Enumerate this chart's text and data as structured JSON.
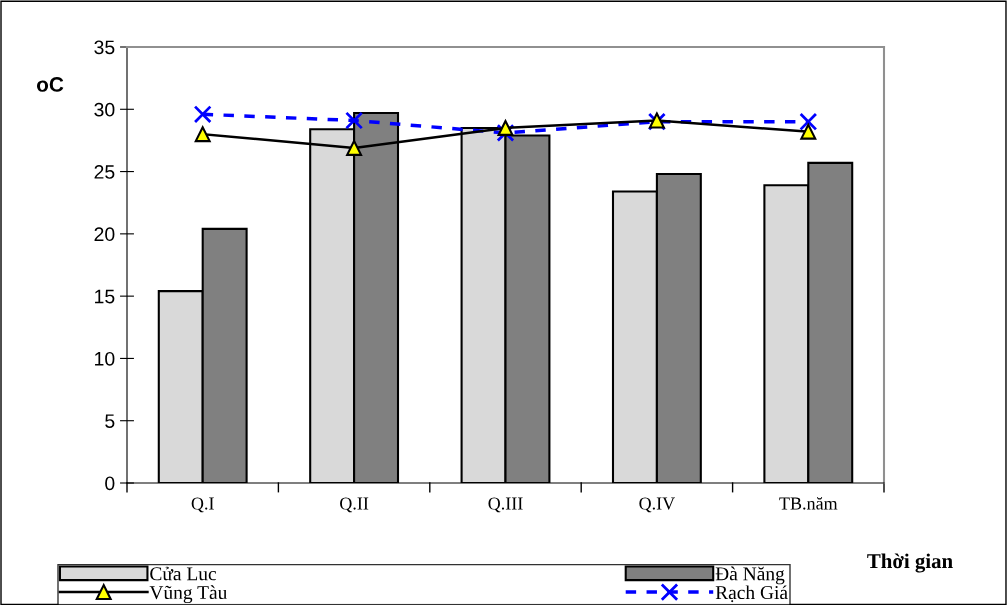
{
  "chart_data": {
    "type": "bar",
    "xlabel": "Thời gian",
    "ylabel": "oC",
    "categories": [
      "Q.I",
      "Q.II",
      "Q.III",
      "Q.IV",
      "TB.năm"
    ],
    "series": [
      {
        "name": "Cửa Luc",
        "color": "#d9d9d9",
        "values": [
          15.4,
          28.4,
          28.5,
          23.4,
          23.9
        ]
      },
      {
        "name": "Đà Năng",
        "color": "#808080",
        "values": [
          20.4,
          29.7,
          27.9,
          24.8,
          25.7
        ]
      },
      {
        "name": "Vũng Tàu",
        "type": "line",
        "color": "#000000",
        "marker": "triangle",
        "line_style": "solid",
        "values": [
          28.0,
          26.9,
          28.5,
          29.1,
          28.2
        ]
      },
      {
        "name": "Rạch Giá",
        "type": "line",
        "color": "#0000ff",
        "marker": "cross",
        "line_style": "dashed",
        "values": [
          29.6,
          29.1,
          28.1,
          29.0,
          29.0
        ]
      }
    ],
    "ylim": [
      0,
      35
    ],
    "yticks": [
      0,
      5,
      10,
      15,
      20,
      25,
      30,
      35
    ],
    "grid": false,
    "legend": "bottom"
  }
}
